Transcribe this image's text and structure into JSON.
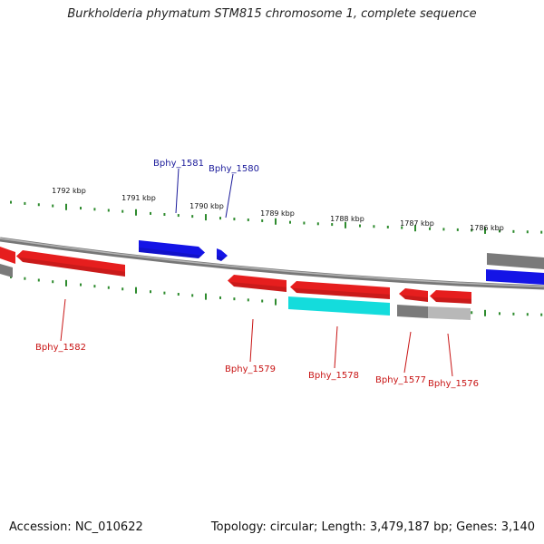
{
  "title": "Burkholderia phymatum STM815 chromosome 1, complete sequence",
  "footer": {
    "accession": "Accession: NC_010622",
    "stats": "Topology: circular; Length: 3,479,187 bp; Genes: 3,140"
  },
  "colors": {
    "backbone": "#8a8a8a",
    "tick": "#2e8b2e",
    "forward_label": "#1a1a9a",
    "reverse_label": "#c81414",
    "gene_red": "#e61e1e",
    "gene_blue": "#1414e6",
    "gene_cyan": "#14dcdc",
    "gene_gray": "#7a7a7a",
    "gene_lightgray": "#b8b8b8"
  },
  "ruler": {
    "unit": "kbp",
    "labels": [
      "1792 kbp",
      "1791 kbp",
      "1790 kbp",
      "1789 kbp",
      "1788 kbp",
      "1787 kbp",
      "1786 kbp"
    ]
  },
  "genes": [
    {
      "name": "Bphy_1581",
      "strand": "forward",
      "color": "blue",
      "labeled": true
    },
    {
      "name": "Bphy_1580",
      "strand": "forward",
      "color": "blue",
      "labeled": true
    },
    {
      "name": "",
      "strand": "forward",
      "color": "gray",
      "labeled": false
    },
    {
      "name": "",
      "strand": "forward",
      "color": "blue",
      "labeled": false
    },
    {
      "name": "",
      "strand": "reverse",
      "color": "red",
      "labeled": false
    },
    {
      "name": "",
      "strand": "reverse",
      "color": "gray",
      "labeled": false
    },
    {
      "name": "Bphy_1582",
      "strand": "reverse",
      "color": "red",
      "labeled": true
    },
    {
      "name": "Bphy_1579",
      "strand": "reverse",
      "color": "red",
      "labeled": true
    },
    {
      "name": "Bphy_1578",
      "strand": "reverse",
      "color": "red",
      "labeled": true
    },
    {
      "name": "",
      "strand": "reverse",
      "color": "cyan",
      "labeled": false
    },
    {
      "name": "Bphy_1577",
      "strand": "reverse",
      "color": "red",
      "labeled": true
    },
    {
      "name": "",
      "strand": "reverse",
      "color": "gray",
      "labeled": false
    },
    {
      "name": "Bphy_1576",
      "strand": "reverse",
      "color": "red",
      "labeled": true
    },
    {
      "name": "",
      "strand": "reverse",
      "color": "lightgray",
      "labeled": false
    }
  ]
}
